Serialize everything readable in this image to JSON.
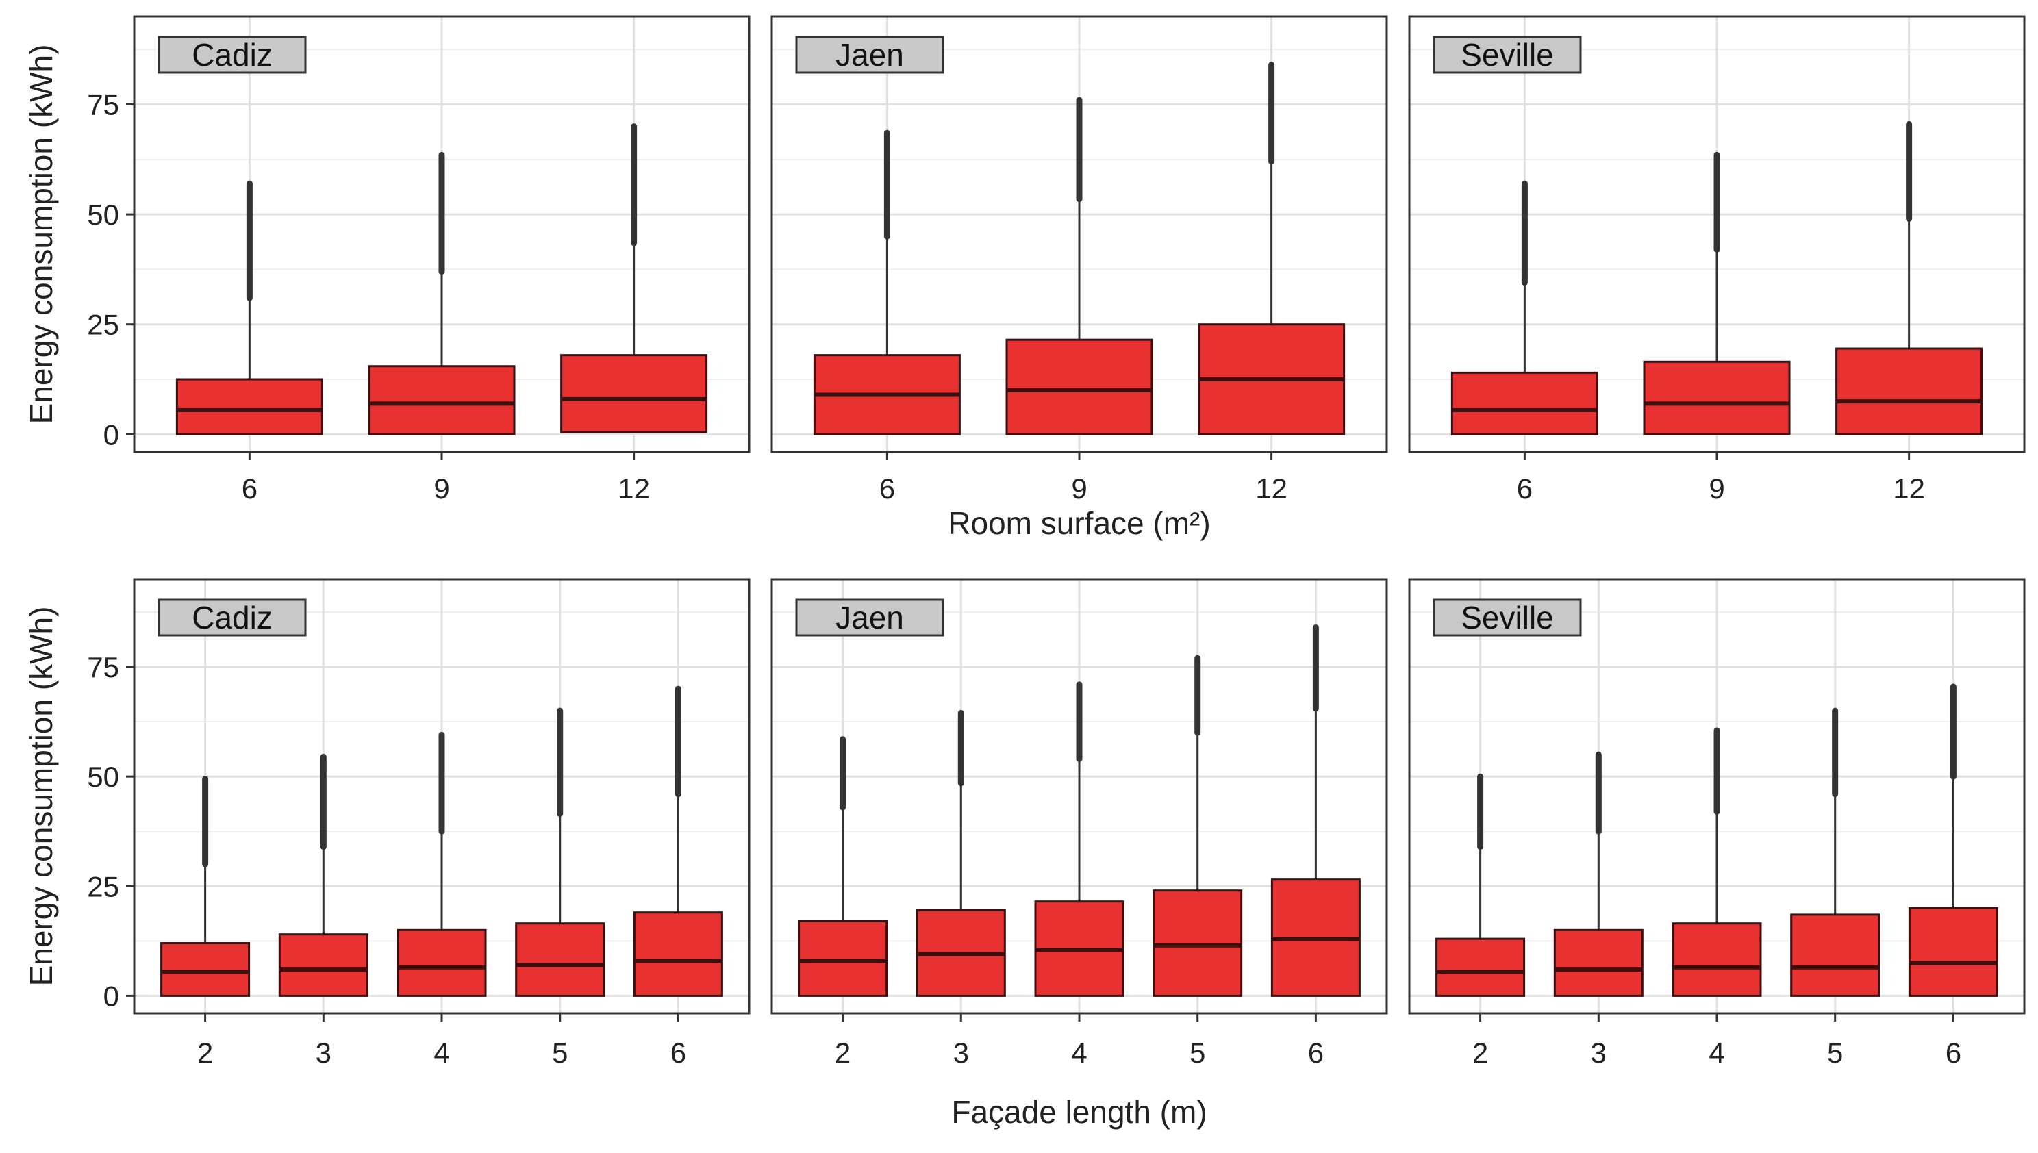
{
  "chart_data": [
    {
      "type": "boxplot",
      "xlabel": "Room surface (m²)",
      "ylabel": "Energy consumption (kWh)",
      "ylim": [
        -4,
        95
      ],
      "yticks": [
        0,
        25,
        50,
        75
      ],
      "grid": true,
      "facets": [
        {
          "panel": "Cadiz",
          "categories": [
            "6",
            "9",
            "12"
          ],
          "boxes": [
            {
              "x": "6",
              "q1": 0,
              "median": 5.5,
              "q3": 12.5,
              "whisker_high": 31,
              "outlier_max": 57
            },
            {
              "x": "9",
              "q1": 0,
              "median": 7,
              "q3": 15.5,
              "whisker_high": 37,
              "outlier_max": 63.5
            },
            {
              "x": "12",
              "q1": 0.5,
              "median": 8,
              "q3": 18,
              "whisker_high": 43.5,
              "outlier_max": 70
            }
          ]
        },
        {
          "panel": "Jaen",
          "categories": [
            "6",
            "9",
            "12"
          ],
          "boxes": [
            {
              "x": "6",
              "q1": 0,
              "median": 9,
              "q3": 18,
              "whisker_high": 45,
              "outlier_max": 68.5
            },
            {
              "x": "9",
              "q1": 0,
              "median": 10,
              "q3": 21.5,
              "whisker_high": 53.5,
              "outlier_max": 76
            },
            {
              "x": "12",
              "q1": 0,
              "median": 12.5,
              "q3": 25,
              "whisker_high": 62,
              "outlier_max": 84
            }
          ]
        },
        {
          "panel": "Seville",
          "categories": [
            "6",
            "9",
            "12"
          ],
          "boxes": [
            {
              "x": "6",
              "q1": 0,
              "median": 5.5,
              "q3": 14,
              "whisker_high": 34.5,
              "outlier_max": 57
            },
            {
              "x": "9",
              "q1": 0,
              "median": 7,
              "q3": 16.5,
              "whisker_high": 42,
              "outlier_max": 63.5
            },
            {
              "x": "12",
              "q1": 0,
              "median": 7.5,
              "q3": 19.5,
              "whisker_high": 49,
              "outlier_max": 70.5
            }
          ]
        }
      ]
    },
    {
      "type": "boxplot",
      "xlabel": "Façade length (m)",
      "ylabel": "Energy consumption (kWh)",
      "ylim": [
        -4,
        95
      ],
      "yticks": [
        0,
        25,
        50,
        75
      ],
      "grid": true,
      "facets": [
        {
          "panel": "Cadiz",
          "categories": [
            "2",
            "3",
            "4",
            "5",
            "6"
          ],
          "boxes": [
            {
              "x": "2",
              "q1": 0,
              "median": 5.5,
              "q3": 12,
              "whisker_high": 30,
              "outlier_max": 49.5
            },
            {
              "x": "3",
              "q1": 0,
              "median": 6,
              "q3": 14,
              "whisker_high": 34,
              "outlier_max": 54.5
            },
            {
              "x": "4",
              "q1": 0,
              "median": 6.5,
              "q3": 15,
              "whisker_high": 37.5,
              "outlier_max": 59.5
            },
            {
              "x": "5",
              "q1": 0,
              "median": 7,
              "q3": 16.5,
              "whisker_high": 41.5,
              "outlier_max": 65
            },
            {
              "x": "6",
              "q1": 0,
              "median": 8,
              "q3": 19,
              "whisker_high": 46,
              "outlier_max": 70
            }
          ]
        },
        {
          "panel": "Jaen",
          "categories": [
            "2",
            "3",
            "4",
            "5",
            "6"
          ],
          "boxes": [
            {
              "x": "2",
              "q1": 0,
              "median": 8,
              "q3": 17,
              "whisker_high": 43,
              "outlier_max": 58.5
            },
            {
              "x": "3",
              "q1": 0,
              "median": 9.5,
              "q3": 19.5,
              "whisker_high": 48.5,
              "outlier_max": 64.5
            },
            {
              "x": "4",
              "q1": 0,
              "median": 10.5,
              "q3": 21.5,
              "whisker_high": 54,
              "outlier_max": 71
            },
            {
              "x": "5",
              "q1": 0,
              "median": 11.5,
              "q3": 24,
              "whisker_high": 60,
              "outlier_max": 77
            },
            {
              "x": "6",
              "q1": 0,
              "median": 13,
              "q3": 26.5,
              "whisker_high": 65.5,
              "outlier_max": 84
            }
          ]
        },
        {
          "panel": "Seville",
          "categories": [
            "2",
            "3",
            "4",
            "5",
            "6"
          ],
          "boxes": [
            {
              "x": "2",
              "q1": 0,
              "median": 5.5,
              "q3": 13,
              "whisker_high": 34,
              "outlier_max": 50
            },
            {
              "x": "3",
              "q1": 0,
              "median": 6,
              "q3": 15,
              "whisker_high": 37.5,
              "outlier_max": 55
            },
            {
              "x": "4",
              "q1": 0,
              "median": 6.5,
              "q3": 16.5,
              "whisker_high": 42,
              "outlier_max": 60.5
            },
            {
              "x": "5",
              "q1": 0,
              "median": 6.5,
              "q3": 18.5,
              "whisker_high": 46,
              "outlier_max": 65
            },
            {
              "x": "6",
              "q1": 0,
              "median": 7.5,
              "q3": 20,
              "whisker_high": 50,
              "outlier_max": 70.5
            }
          ]
        }
      ]
    }
  ],
  "colors": {
    "box_fill": "#e83232",
    "box_stroke": "#3a1010",
    "median": "#3a1010",
    "whisker": "#333333",
    "outlier": "#333333",
    "grid_major": "#e0e0e0",
    "grid_minor": "#efefef",
    "panel_border": "#333333",
    "strip_fill": "#c8c8c8"
  }
}
